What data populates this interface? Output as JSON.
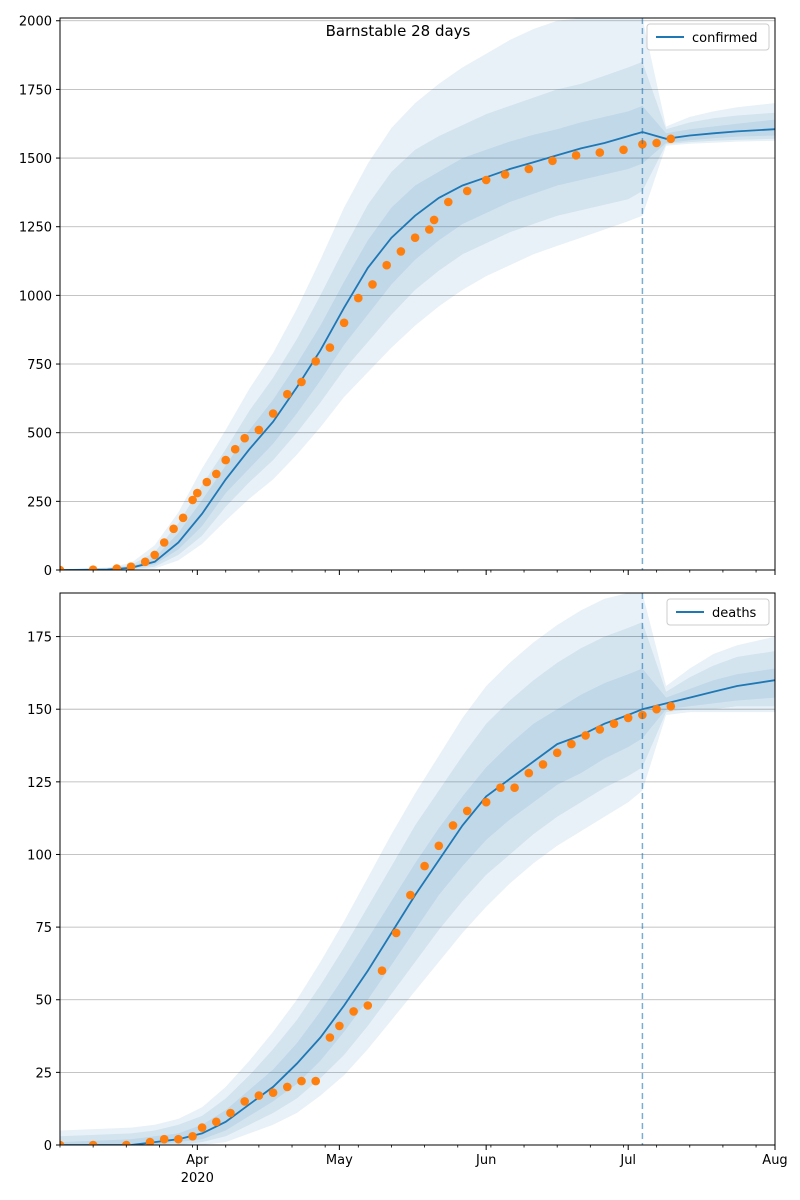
{
  "figure": {
    "title": "Barnstable 28 days",
    "x_axis": {
      "tick_labels": [
        "Apr",
        "May",
        "Jun",
        "Jul",
        "Aug"
      ],
      "tick_dates": [
        "2020-04-01",
        "2020-05-01",
        "2020-06-01",
        "2020-07-01",
        "2020-08-01"
      ],
      "year_label": "2020",
      "range": [
        "2020-03-03",
        "2020-08-01"
      ]
    },
    "forecast_start": "2020-07-04",
    "colors": {
      "model_line": "#1f77b4",
      "observed_points": "#ff7f0e",
      "band": "#1f77b4",
      "grid": "#b0b0b0",
      "forecast_divider": "#1f77b4"
    }
  },
  "chart_data": [
    {
      "type": "line",
      "legend": "confirmed",
      "legend_position": "top-right",
      "grid": "horizontal",
      "ylim": [
        0,
        2010
      ],
      "yticks": [
        0,
        250,
        500,
        750,
        1000,
        1250,
        1500,
        1750,
        2000
      ],
      "model": {
        "dates": [
          "2020-03-03",
          "2020-03-13",
          "2020-03-18",
          "2020-03-23",
          "2020-03-28",
          "2020-04-02",
          "2020-04-07",
          "2020-04-12",
          "2020-04-17",
          "2020-04-22",
          "2020-04-27",
          "2020-05-02",
          "2020-05-07",
          "2020-05-12",
          "2020-05-17",
          "2020-05-22",
          "2020-05-27",
          "2020-06-01",
          "2020-06-06",
          "2020-06-11",
          "2020-06-16",
          "2020-06-21",
          "2020-06-26",
          "2020-07-01",
          "2020-07-04",
          "2020-07-09",
          "2020-07-14",
          "2020-07-19",
          "2020-07-24",
          "2020-08-01"
        ],
        "values": [
          0,
          2,
          8,
          30,
          100,
          205,
          330,
          440,
          540,
          665,
          800,
          955,
          1100,
          1210,
          1290,
          1355,
          1400,
          1430,
          1460,
          1485,
          1510,
          1535,
          1555,
          1580,
          1595,
          1570,
          1582,
          1590,
          1597,
          1605
        ],
        "bands": [
          {
            "label": "inner",
            "lower": [
              0,
              1,
              5,
              20,
              75,
              160,
              280,
              370,
              460,
              570,
              690,
              820,
              930,
              1040,
              1130,
              1200,
              1260,
              1300,
              1340,
              1370,
              1400,
              1420,
              1440,
              1460,
              1480,
              1555,
              1565,
              1572,
              1578,
              1582
            ],
            "upper": [
              0,
              4,
              12,
              45,
              135,
              255,
              380,
              510,
              620,
              750,
              890,
              1050,
              1200,
              1320,
              1400,
              1450,
              1500,
              1530,
              1560,
              1585,
              1605,
              1630,
              1650,
              1670,
              1690,
              1590,
              1605,
              1615,
              1625,
              1640
            ]
          },
          {
            "label": "middle",
            "lower": [
              0,
              0,
              3,
              12,
              55,
              125,
              230,
              320,
              400,
              500,
              610,
              730,
              830,
              930,
              1020,
              1090,
              1150,
              1190,
              1230,
              1260,
              1290,
              1310,
              1330,
              1350,
              1380,
              1550,
              1558,
              1563,
              1566,
              1570
            ],
            "upper": [
              0,
              6,
              18,
              65,
              170,
              310,
              440,
              580,
              700,
              840,
              1000,
              1170,
              1330,
              1450,
              1530,
              1580,
              1620,
              1660,
              1690,
              1720,
              1750,
              1770,
              1800,
              1830,
              1850,
              1605,
              1630,
              1645,
              1655,
              1665
            ]
          },
          {
            "label": "outer",
            "lower": [
              0,
              0,
              1,
              5,
              35,
              95,
              180,
              260,
              330,
              420,
              520,
              630,
              720,
              810,
              890,
              960,
              1020,
              1070,
              1110,
              1150,
              1180,
              1210,
              1240,
              1270,
              1290,
              1545,
              1552,
              1556,
              1560,
              1563
            ],
            "upper": [
              0,
              9,
              25,
              90,
              210,
              370,
              510,
              660,
              790,
              950,
              1130,
              1320,
              1480,
              1610,
              1700,
              1770,
              1830,
              1880,
              1930,
              1970,
              2000,
              2010,
              2010,
              2010,
              2010,
              1615,
              1650,
              1670,
              1685,
              1700
            ]
          }
        ]
      },
      "observed": {
        "dates": [
          "2020-03-03",
          "2020-03-10",
          "2020-03-15",
          "2020-03-18",
          "2020-03-21",
          "2020-03-23",
          "2020-03-25",
          "2020-03-27",
          "2020-03-29",
          "2020-03-31",
          "2020-04-01",
          "2020-04-03",
          "2020-04-05",
          "2020-04-07",
          "2020-04-09",
          "2020-04-11",
          "2020-04-14",
          "2020-04-17",
          "2020-04-20",
          "2020-04-23",
          "2020-04-26",
          "2020-04-29",
          "2020-05-02",
          "2020-05-05",
          "2020-05-08",
          "2020-05-11",
          "2020-05-14",
          "2020-05-17",
          "2020-05-20",
          "2020-05-21",
          "2020-05-24",
          "2020-05-28",
          "2020-06-01",
          "2020-06-05",
          "2020-06-10",
          "2020-06-15",
          "2020-06-20",
          "2020-06-25",
          "2020-06-30",
          "2020-07-04",
          "2020-07-07",
          "2020-07-10"
        ],
        "values": [
          0,
          1,
          5,
          12,
          30,
          55,
          100,
          150,
          190,
          255,
          280,
          320,
          350,
          400,
          440,
          480,
          510,
          570,
          640,
          685,
          760,
          810,
          900,
          990,
          1040,
          1110,
          1160,
          1210,
          1240,
          1275,
          1340,
          1380,
          1420,
          1440,
          1460,
          1490,
          1510,
          1520,
          1530,
          1550,
          1555,
          1570
        ]
      }
    },
    {
      "type": "line",
      "legend": "deaths",
      "legend_position": "top-right",
      "grid": "horizontal",
      "ylim": [
        0,
        190
      ],
      "yticks": [
        0,
        25,
        50,
        75,
        100,
        125,
        150,
        175
      ],
      "model": {
        "dates": [
          "2020-03-03",
          "2020-03-18",
          "2020-03-23",
          "2020-03-28",
          "2020-04-02",
          "2020-04-07",
          "2020-04-12",
          "2020-04-17",
          "2020-04-22",
          "2020-04-27",
          "2020-05-02",
          "2020-05-07",
          "2020-05-12",
          "2020-05-17",
          "2020-05-22",
          "2020-05-27",
          "2020-06-01",
          "2020-06-06",
          "2020-06-11",
          "2020-06-16",
          "2020-06-21",
          "2020-06-26",
          "2020-07-01",
          "2020-07-04",
          "2020-07-09",
          "2020-07-14",
          "2020-07-19",
          "2020-07-24",
          "2020-08-01"
        ],
        "values": [
          0,
          0,
          1,
          2,
          4,
          8,
          14,
          20,
          28,
          37,
          48,
          60,
          73,
          86,
          98,
          110,
          120,
          126,
          132,
          138,
          141,
          145,
          148,
          150,
          152,
          154,
          156,
          158,
          160
        ],
        "bands": [
          {
            "label": "inner",
            "lower": [
              0,
              0,
              0,
              1,
              2,
              5,
              10,
              15,
              21,
              29,
              39,
              50,
              62,
              74,
              86,
              96,
              105,
              112,
              118,
              124,
              128,
              133,
              137,
              140,
              150,
              151,
              152,
              153,
              154
            ],
            "upper": [
              1,
              2,
              3,
              4,
              7,
              12,
              19,
              26,
              35,
              46,
              58,
              71,
              84,
              97,
              109,
              120,
              130,
              138,
              145,
              150,
              155,
              159,
              162,
              164,
              154,
              157,
              160,
              162,
              164
            ]
          },
          {
            "label": "middle",
            "lower": [
              0,
              0,
              0,
              0,
              1,
              3,
              7,
              11,
              16,
              23,
              31,
              41,
              52,
              63,
              74,
              84,
              93,
              100,
              107,
              113,
              118,
              123,
              127,
              130,
              149,
              150,
              150,
              151,
              151
            ],
            "upper": [
              3,
              4,
              5,
              7,
              10,
              16,
              24,
              33,
              43,
              55,
              68,
              82,
              96,
              110,
              122,
              134,
              145,
              153,
              160,
              166,
              171,
              175,
              178,
              180,
              156,
              161,
              165,
              168,
              170
            ]
          },
          {
            "label": "outer",
            "lower": [
              0,
              0,
              0,
              0,
              0,
              1,
              4,
              7,
              11,
              17,
              24,
              33,
              43,
              53,
              63,
              73,
              82,
              90,
              97,
              103,
              108,
              113,
              118,
              122,
              148,
              149,
              149,
              149,
              149
            ],
            "upper": [
              5,
              6,
              7,
              9,
              13,
              20,
              29,
              39,
              50,
              63,
              77,
              92,
              107,
              121,
              134,
              147,
              158,
              166,
              173,
              179,
              184,
              188,
              190,
              190,
              158,
              164,
              169,
              172,
              175
            ]
          }
        ]
      },
      "observed": {
        "dates": [
          "2020-03-03",
          "2020-03-10",
          "2020-03-17",
          "2020-03-22",
          "2020-03-25",
          "2020-03-28",
          "2020-03-31",
          "2020-04-02",
          "2020-04-05",
          "2020-04-08",
          "2020-04-11",
          "2020-04-14",
          "2020-04-17",
          "2020-04-20",
          "2020-04-23",
          "2020-04-26",
          "2020-04-29",
          "2020-05-01",
          "2020-05-04",
          "2020-05-07",
          "2020-05-10",
          "2020-05-13",
          "2020-05-16",
          "2020-05-19",
          "2020-05-22",
          "2020-05-25",
          "2020-05-28",
          "2020-06-01",
          "2020-06-04",
          "2020-06-07",
          "2020-06-10",
          "2020-06-13",
          "2020-06-16",
          "2020-06-19",
          "2020-06-22",
          "2020-06-25",
          "2020-06-28",
          "2020-07-01",
          "2020-07-04",
          "2020-07-07",
          "2020-07-10"
        ],
        "values": [
          0,
          0,
          0,
          1,
          2,
          2,
          3,
          6,
          8,
          11,
          15,
          17,
          18,
          20,
          22,
          22,
          37,
          41,
          46,
          48,
          60,
          73,
          86,
          96,
          103,
          110,
          115,
          118,
          123,
          123,
          128,
          131,
          135,
          138,
          141,
          143,
          145,
          147,
          148,
          150,
          151
        ]
      }
    }
  ]
}
